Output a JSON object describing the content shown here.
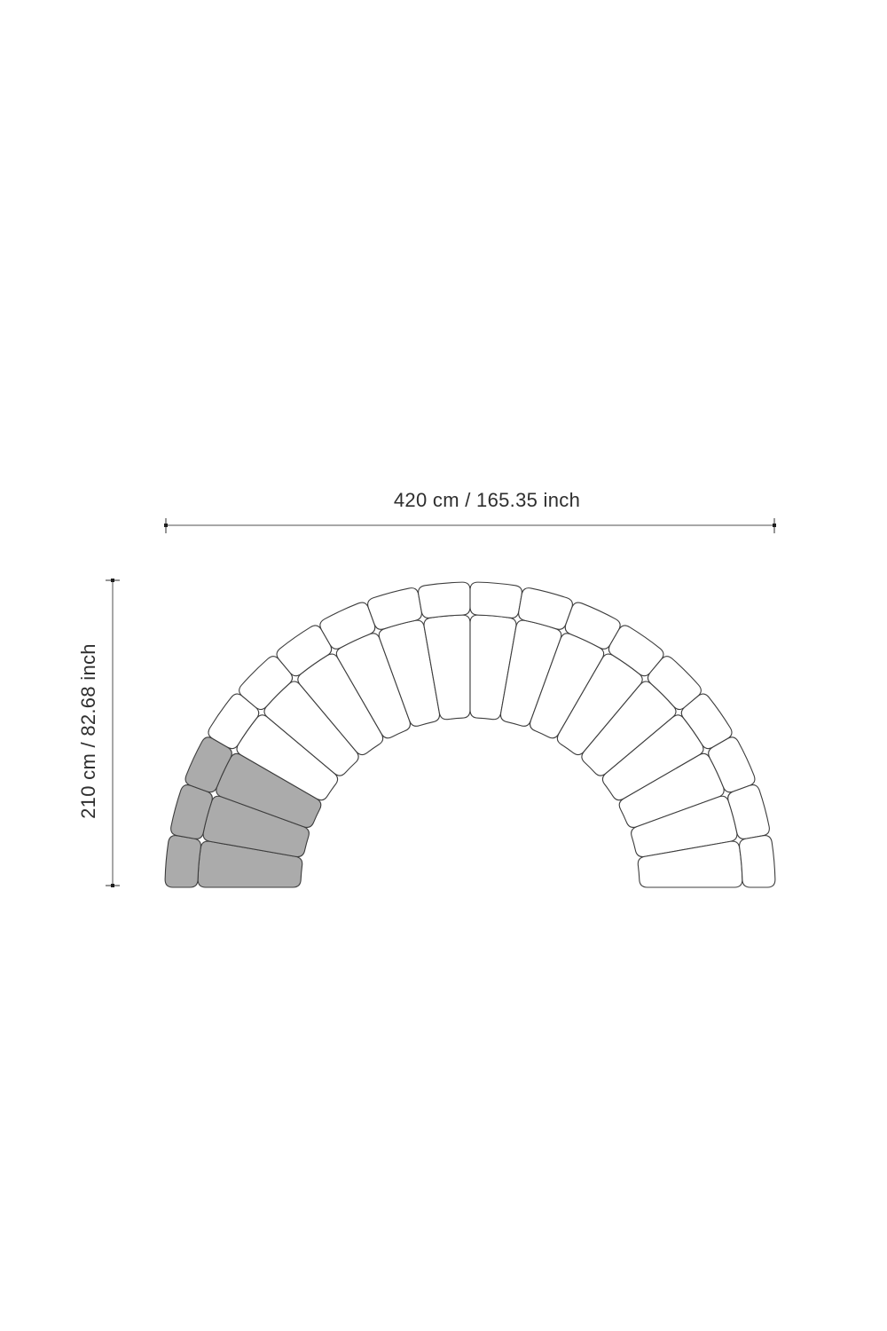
{
  "diagram": {
    "subject": "curved-modular-sofa-top-view",
    "width_label": "420 cm / 165.35 inch",
    "height_label": "210 cm / 82.68 inch",
    "arc_span_deg": 180,
    "module_angle_deg": 10,
    "modules_total": 18,
    "modules_highlighted_count": 3,
    "highlighted_side": "left-end",
    "colors": {
      "background": "#ffffff",
      "module_fill": "#ffffff",
      "highlight_fill": "#ababab",
      "outline": "#3d3d3d",
      "dimension_line": "#4f4f4f",
      "dimension_dot": "#1f1f1f",
      "label_text": "#2e2e2e"
    }
  }
}
